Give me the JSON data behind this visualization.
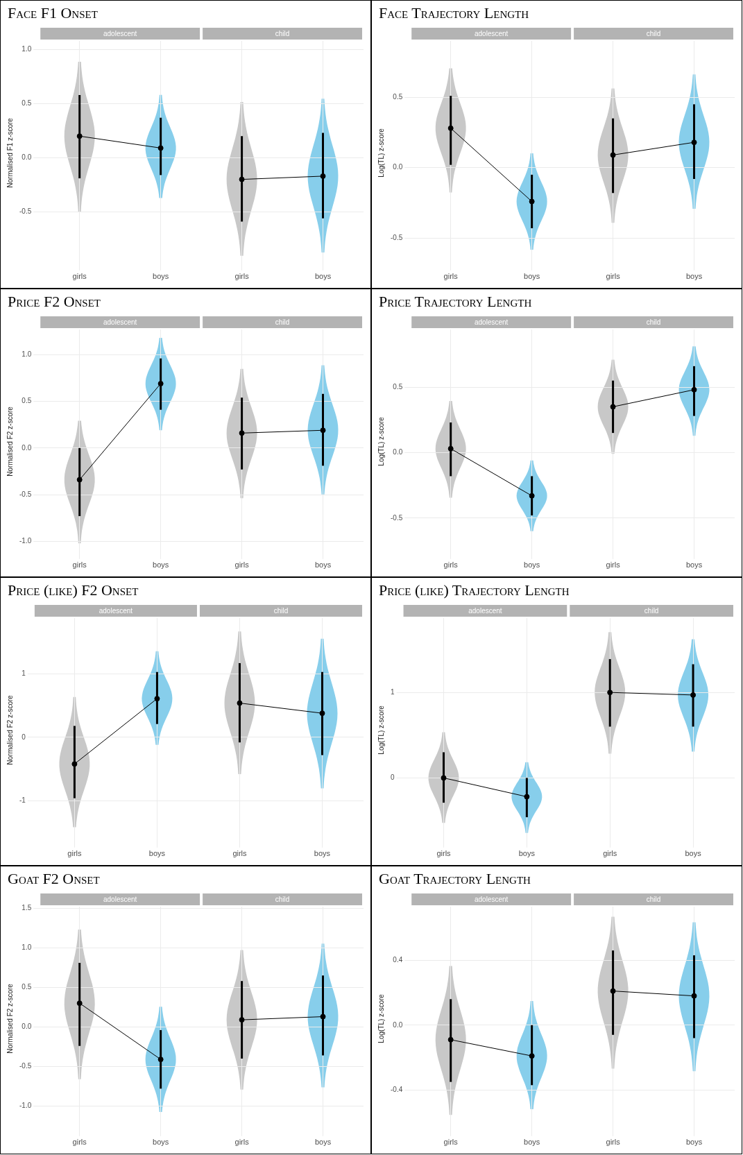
{
  "chart_data": [
    {
      "type": "line",
      "title": "Face F1 Onset",
      "ylabel": "Normalised F1 z-score",
      "annotations": [
        "adolescent",
        "child"
      ],
      "categories": [
        "girls",
        "boys",
        "girls",
        "boys"
      ],
      "grid": true,
      "marker": "circle",
      "line_style": "solid",
      "ylim": [
        -0.99,
        1.08
      ],
      "yticks": [
        {
          "value": 1,
          "label": "1.0"
        },
        0.5,
        {
          "value": 0,
          "label": "0.0"
        },
        -0.5
      ],
      "series": [
        {
          "color": "#000000",
          "values": [
            0.2,
            0.09,
            null,
            null
          ],
          "errors": [
            [
              -0.19,
              0.58
            ],
            [
              -0.16,
              0.37
            ],
            null,
            null
          ]
        },
        {
          "color": "#000000",
          "values": [
            null,
            null,
            -0.2,
            -0.17
          ],
          "errors": [
            null,
            null,
            [
              -0.59,
              0.2
            ],
            [
              -0.56,
              0.23
            ]
          ]
        }
      ]
    },
    {
      "type": "line",
      "title": "Face Trajectory Length",
      "ylabel": "Log(TL) z-score",
      "annotations": [
        "adolescent",
        "child"
      ],
      "categories": [
        "girls",
        "boys",
        "girls",
        "boys"
      ],
      "grid": true,
      "marker": "circle",
      "line_style": "solid",
      "ylim": [
        -0.69,
        0.9
      ],
      "yticks": [
        0.5,
        {
          "value": 0,
          "label": "0.0"
        },
        -0.5
      ],
      "series": [
        {
          "color": "#000000",
          "values": [
            0.28,
            -0.24,
            null,
            null
          ],
          "errors": [
            [
              0.02,
              0.51
            ],
            [
              -0.43,
              -0.05
            ],
            null,
            null
          ]
        },
        {
          "color": "#000000",
          "values": [
            null,
            null,
            0.09,
            0.18
          ],
          "errors": [
            null,
            null,
            [
              -0.18,
              0.35
            ],
            [
              -0.08,
              0.45
            ]
          ]
        }
      ]
    },
    {
      "type": "line",
      "title": "Price F2 Onset",
      "ylabel": "Normalised F2 z-score",
      "annotations": [
        "adolescent",
        "child"
      ],
      "categories": [
        "girls",
        "boys",
        "girls",
        "boys"
      ],
      "grid": true,
      "marker": "circle",
      "line_style": "solid",
      "ylim": [
        -1.13,
        1.27
      ],
      "yticks": [
        {
          "value": 1,
          "label": "1.0"
        },
        0.5,
        {
          "value": 0,
          "label": "0.0"
        },
        -0.5,
        {
          "value": -1,
          "label": "-1.0"
        }
      ],
      "series": [
        {
          "color": "#000000",
          "values": [
            -0.34,
            0.69,
            null,
            null
          ],
          "errors": [
            [
              -0.73,
              0
            ],
            [
              0.41,
              0.96
            ],
            null,
            null
          ]
        },
        {
          "color": "#000000",
          "values": [
            null,
            null,
            0.16,
            0.19
          ],
          "errors": [
            null,
            null,
            [
              -0.23,
              0.54
            ],
            [
              -0.19,
              0.58
            ]
          ]
        }
      ]
    },
    {
      "type": "line",
      "title": "Price Trajectory Length",
      "ylabel": "Log(TL) z-score",
      "annotations": [
        "adolescent",
        "child"
      ],
      "categories": [
        "girls",
        "boys",
        "girls",
        "boys"
      ],
      "grid": true,
      "marker": "circle",
      "line_style": "solid",
      "ylim": [
        -0.77,
        0.94
      ],
      "yticks": [
        0.5,
        {
          "value": 0,
          "label": "0.0"
        },
        -0.5
      ],
      "series": [
        {
          "color": "#000000",
          "values": [
            0.03,
            -0.33,
            null,
            null
          ],
          "errors": [
            [
              -0.18,
              0.23
            ],
            [
              -0.48,
              -0.18
            ],
            null,
            null
          ]
        },
        {
          "color": "#000000",
          "values": [
            null,
            null,
            0.35,
            0.48
          ],
          "errors": [
            null,
            null,
            [
              0.15,
              0.55
            ],
            [
              0.28,
              0.66
            ]
          ]
        }
      ]
    },
    {
      "type": "line",
      "title": "Price (like) F2 Onset",
      "ylabel": "Normalised F2 z-score",
      "annotations": [
        "adolescent",
        "child"
      ],
      "categories": [
        "girls",
        "boys",
        "girls",
        "boys"
      ],
      "grid": true,
      "marker": "circle",
      "line_style": "solid",
      "ylim": [
        -1.65,
        1.88
      ],
      "yticks": [
        1,
        0,
        -1
      ],
      "series": [
        {
          "color": "#000000",
          "values": [
            -0.42,
            0.61,
            null,
            null
          ],
          "errors": [
            [
              -0.96,
              0.18
            ],
            [
              0.21,
              1.03
            ],
            null,
            null
          ]
        },
        {
          "color": "#000000",
          "values": [
            null,
            null,
            0.54,
            0.38
          ],
          "errors": [
            null,
            null,
            [
              -0.08,
              1.17
            ],
            [
              -0.28,
              1.03
            ]
          ]
        }
      ]
    },
    {
      "type": "line",
      "title": "Price (like) Trajectory Length",
      "ylabel": "Log(TL) z-score",
      "annotations": [
        "adolescent",
        "child"
      ],
      "categories": [
        "girls",
        "boys",
        "girls",
        "boys"
      ],
      "grid": true,
      "marker": "circle",
      "line_style": "solid",
      "ylim": [
        -0.75,
        1.87
      ],
      "yticks": [
        1,
        0
      ],
      "series": [
        {
          "color": "#000000",
          "values": [
            0,
            -0.22,
            null,
            null
          ],
          "errors": [
            [
              -0.29,
              0.3
            ],
            [
              -0.46,
              0
            ],
            null,
            null
          ]
        },
        {
          "color": "#000000",
          "values": [
            null,
            null,
            1,
            0.97
          ],
          "errors": [
            null,
            null,
            [
              0.6,
              1.39
            ],
            [
              0.6,
              1.33
            ]
          ]
        }
      ]
    },
    {
      "type": "line",
      "title": "Goat F2 Onset",
      "ylabel": "Normalised F2 z-score",
      "annotations": [
        "adolescent",
        "child"
      ],
      "categories": [
        "girls",
        "boys",
        "girls",
        "boys"
      ],
      "grid": true,
      "marker": "circle",
      "line_style": "solid",
      "ylim": [
        -1.31,
        1.52
      ],
      "yticks": [
        1.5,
        {
          "value": 1,
          "label": "1.0"
        },
        0.5,
        {
          "value": 0,
          "label": "0.0"
        },
        -0.5,
        {
          "value": -1,
          "label": "-1.0"
        }
      ],
      "series": [
        {
          "color": "#000000",
          "values": [
            0.3,
            -0.41,
            null,
            null
          ],
          "errors": [
            [
              -0.24,
              0.81
            ],
            [
              -0.78,
              -0.04
            ],
            null,
            null
          ]
        },
        {
          "color": "#000000",
          "values": [
            null,
            null,
            0.09,
            0.13
          ],
          "errors": [
            null,
            null,
            [
              -0.4,
              0.58
            ],
            [
              -0.36,
              0.65
            ]
          ]
        }
      ]
    },
    {
      "type": "line",
      "title": "Goat Trajectory Length",
      "ylabel": "Log(TL) z-score",
      "annotations": [
        "adolescent",
        "child"
      ],
      "categories": [
        "girls",
        "boys",
        "girls",
        "boys"
      ],
      "grid": true,
      "marker": "circle",
      "line_style": "solid",
      "ylim": [
        -0.65,
        0.73
      ],
      "yticks": [
        0.4,
        {
          "value": 0,
          "label": "0.0"
        },
        -0.4
      ],
      "series": [
        {
          "color": "#000000",
          "values": [
            -0.09,
            -0.19,
            null,
            null
          ],
          "errors": [
            [
              -0.35,
              0.16
            ],
            [
              -0.37,
              0
            ],
            null,
            null
          ]
        },
        {
          "color": "#000000",
          "values": [
            null,
            null,
            0.21,
            0.18
          ],
          "errors": [
            null,
            null,
            [
              -0.06,
              0.46
            ],
            [
              -0.08,
              0.43
            ]
          ]
        }
      ]
    }
  ]
}
